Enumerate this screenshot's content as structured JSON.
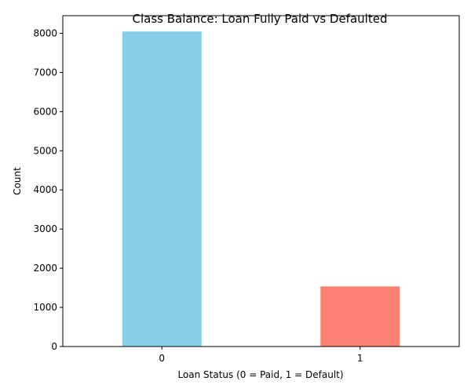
{
  "chart_data": {
    "type": "bar",
    "title": "Class Balance: Loan Fully Paid vs Defaulted",
    "xlabel": "Loan Status (0 = Paid, 1 = Default)",
    "ylabel": "Count",
    "categories": [
      "0",
      "1"
    ],
    "values": [
      8045,
      1536
    ],
    "colors": [
      "#87ceeb",
      "#fa8072"
    ],
    "ylim": [
      0,
      8450
    ],
    "yticks": [
      0,
      1000,
      2000,
      3000,
      4000,
      5000,
      6000,
      7000,
      8000
    ],
    "grid": false,
    "legend": "none"
  }
}
